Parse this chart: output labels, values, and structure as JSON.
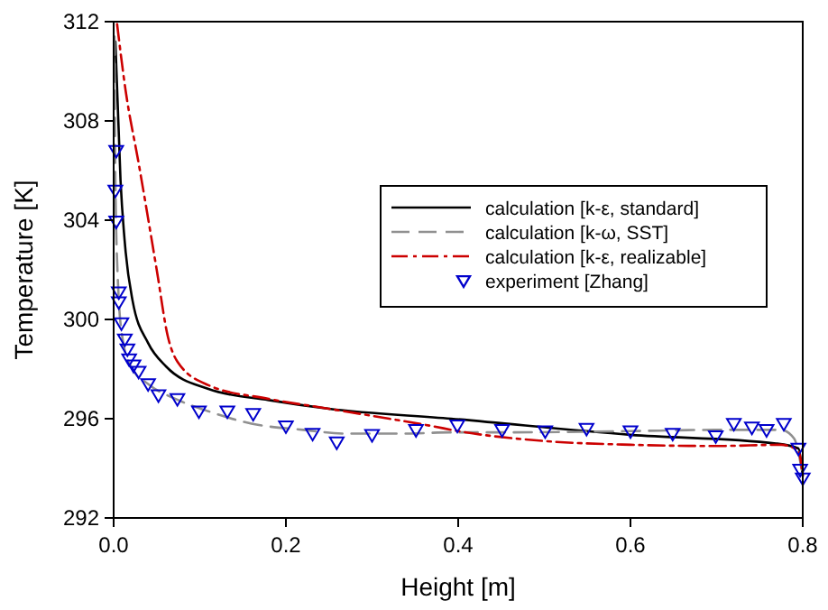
{
  "chart_data": {
    "type": "line",
    "xlabel": "Height [m]",
    "ylabel": "Temperature [K]",
    "xlim": [
      0,
      0.8
    ],
    "ylim": [
      292,
      312
    ],
    "xticks": [
      {
        "value": 0,
        "label": "0.0"
      },
      0.2,
      0.4,
      0.6,
      0.8
    ],
    "yticks": [
      292,
      296,
      300,
      304,
      308,
      312
    ],
    "grid": false,
    "legend": "right",
    "series": [
      {
        "name": "calculation [k-ε, standard]",
        "color": "#000000",
        "line_style": "solid",
        "x": [
          0.002,
          0.008,
          0.014,
          0.022,
          0.04,
          0.061,
          0.11,
          0.18,
          0.25,
          0.392,
          0.6,
          0.769,
          0.795,
          0.8
        ],
        "values": [
          311.2,
          305.6,
          302.7,
          300.75,
          299.05,
          298.1,
          297.2,
          296.75,
          296.4,
          296.0,
          295.35,
          295.0,
          294.8,
          293.7
        ]
      },
      {
        "name": "calculation [k-ω, SST]",
        "color": "#909090",
        "line_style": "dashed",
        "x": [
          0.001,
          0.002,
          0.005,
          0.01,
          0.02,
          0.04,
          0.075,
          0.11,
          0.16,
          0.22,
          0.27,
          0.34,
          0.39,
          0.46,
          0.6,
          0.7,
          0.775,
          0.79,
          0.8
        ],
        "values": [
          311.4,
          305.6,
          301.5,
          299.3,
          298.1,
          297.4,
          296.75,
          296.3,
          295.8,
          295.55,
          295.4,
          295.4,
          295.45,
          295.45,
          295.5,
          295.55,
          295.55,
          295.2,
          293.7
        ]
      },
      {
        "name": "calculation [k-ε, realizable]",
        "color": "#cc0000",
        "line_style": "dashdot",
        "x": [
          0.004,
          0.014,
          0.029,
          0.05,
          0.063,
          0.074,
          0.11,
          0.18,
          0.25,
          0.32,
          0.37,
          0.4,
          0.5,
          0.6,
          0.7,
          0.775,
          0.795,
          0.8
        ],
        "values": [
          311.9,
          309.2,
          306.3,
          302.0,
          299.3,
          298.3,
          297.35,
          296.8,
          296.4,
          296.0,
          295.7,
          295.5,
          295.1,
          294.95,
          294.9,
          294.95,
          294.7,
          293.7
        ]
      },
      {
        "name": "experiment [Zhang]",
        "type": "scatter",
        "marker": "triangle",
        "color": "#0000cc",
        "x": [
          0.003,
          0.002,
          0.003,
          0.006,
          0.006,
          0.009,
          0.013,
          0.016,
          0.018,
          0.023,
          0.029,
          0.04,
          0.052,
          0.074,
          0.099,
          0.132,
          0.162,
          0.2,
          0.231,
          0.259,
          0.3,
          0.351,
          0.399,
          0.451,
          0.501,
          0.549,
          0.6,
          0.649,
          0.699,
          0.72,
          0.741,
          0.758,
          0.778,
          0.795,
          0.797,
          0.8
        ],
        "values": [
          306.8,
          305.2,
          303.95,
          301.1,
          300.7,
          299.85,
          299.2,
          298.8,
          298.4,
          298.15,
          297.9,
          297.4,
          296.95,
          296.8,
          296.3,
          296.3,
          296.2,
          295.7,
          295.4,
          295.05,
          295.35,
          295.55,
          295.73,
          295.55,
          295.5,
          295.6,
          295.5,
          295.4,
          295.3,
          295.8,
          295.65,
          295.55,
          295.8,
          294.8,
          293.95,
          293.6
        ]
      }
    ]
  }
}
